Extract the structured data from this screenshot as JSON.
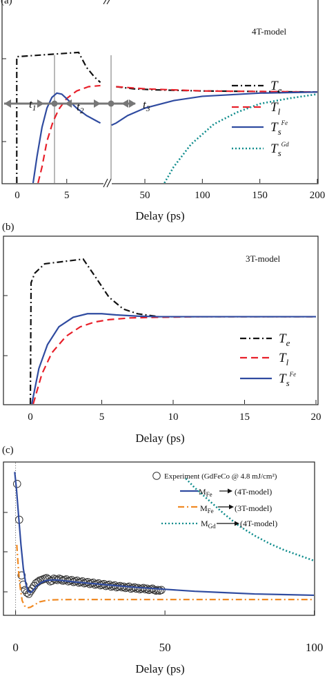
{
  "colors": {
    "Te": "#111111",
    "Tl": "#e8202a",
    "TsFe": "#2f4ba0",
    "TsGd": "#0e8c8c",
    "M_3T": "#f08a24",
    "marker": "#333333",
    "guide": "#888888"
  },
  "panels": {
    "a": {
      "label": "(a)",
      "model": "4T-model"
    },
    "b": {
      "label": "(b)",
      "model": "3T-model"
    },
    "c": {
      "label": "(c)"
    }
  },
  "intervals": {
    "t1": "t",
    "t1_sub": "1",
    "t2": "t",
    "t2_sub": "2",
    "t3": "t",
    "t3_sub": "3"
  },
  "chart_data": [
    {
      "type": "line",
      "panel": "a",
      "xlabel": "Delay (ps)",
      "x_axis": "broken",
      "x_segments": [
        {
          "xlim": [
            -1,
            8.5
          ],
          "ticks": [
            0,
            5
          ]
        },
        {
          "xlim": [
            20,
            200
          ],
          "ticks": [
            50,
            100,
            150,
            200
          ]
        }
      ],
      "tick_labels": [
        "0",
        "5",
        "50",
        "100",
        "150",
        "200"
      ],
      "annotation": "4T-model",
      "legend_placement": "right",
      "series": [
        {
          "name": "T",
          "sub": "e",
          "style": "dashdot",
          "x": [
            -0.05,
            -0.05,
            6.2,
            7.0,
            7.8,
            8.4,
            25,
            40,
            60,
            100,
            150,
            200
          ],
          "y": [
            0,
            1.18,
            1.22,
            1.08,
            0.99,
            0.94,
            0.9,
            0.88,
            0.87,
            0.86,
            0.855,
            0.85
          ]
        },
        {
          "name": "T",
          "sub": "l",
          "style": "dashed",
          "x": [
            2.1,
            2.5,
            3.0,
            3.6,
            4.2,
            5.0,
            6.0,
            7.2,
            8.4,
            25,
            50,
            100,
            150,
            200
          ],
          "y": [
            0,
            0.15,
            0.39,
            0.57,
            0.69,
            0.79,
            0.86,
            0.9,
            0.91,
            0.9,
            0.88,
            0.86,
            0.855,
            0.85
          ]
        },
        {
          "name": "T",
          "sub": "s",
          "sup": "Fe",
          "style": "solid",
          "x": [
            1.6,
            2.0,
            2.5,
            3.0,
            3.5,
            4.0,
            4.5,
            5.2,
            6.0,
            7.0,
            8.0,
            8.4,
            21,
            25,
            35,
            50,
            75,
            100,
            150,
            200
          ],
          "y": [
            0,
            0.25,
            0.52,
            0.7,
            0.8,
            0.84,
            0.83,
            0.77,
            0.7,
            0.63,
            0.58,
            0.56,
            0.54,
            0.56,
            0.63,
            0.7,
            0.77,
            0.81,
            0.84,
            0.85
          ]
        },
        {
          "name": "T",
          "sub": "s",
          "sup": "Gd",
          "style": "dotted",
          "x": [
            67,
            75,
            90,
            110,
            130,
            150,
            175,
            200
          ],
          "y": [
            0,
            0.15,
            0.36,
            0.55,
            0.66,
            0.74,
            0.79,
            0.83
          ]
        }
      ]
    },
    {
      "type": "line",
      "panel": "b",
      "xlabel": "Delay (ps)",
      "xlim": [
        -2,
        20
      ],
      "x_ticks": [
        0,
        5,
        10,
        15,
        20
      ],
      "annotation": "3T-model",
      "legend_placement": "right",
      "series": [
        {
          "name": "T",
          "sub": "e",
          "style": "dashdot",
          "x": [
            0.0,
            0.05,
            0.3,
            1.0,
            3.7,
            4.5,
            5.5,
            6.5,
            7.5,
            9,
            12,
            20
          ],
          "y": [
            0,
            1.02,
            1.1,
            1.18,
            1.22,
            1.08,
            0.9,
            0.8,
            0.76,
            0.735,
            0.735,
            0.735
          ]
        },
        {
          "name": "T",
          "sub": "l",
          "style": "dashed",
          "x": [
            0.2,
            0.8,
            1.5,
            2.5,
            3.5,
            4.5,
            5.5,
            7,
            9,
            12,
            20
          ],
          "y": [
            0,
            0.25,
            0.43,
            0.57,
            0.65,
            0.69,
            0.71,
            0.725,
            0.73,
            0.735,
            0.735
          ]
        },
        {
          "name": "T",
          "sub": "s",
          "sup": "Fe",
          "style": "solid",
          "x": [
            0.1,
            0.6,
            1.2,
            2.0,
            3.0,
            4.0,
            5.0,
            6.0,
            7.5,
            9,
            12,
            20
          ],
          "y": [
            0,
            0.3,
            0.5,
            0.65,
            0.73,
            0.76,
            0.76,
            0.75,
            0.74,
            0.735,
            0.735,
            0.735
          ]
        }
      ]
    },
    {
      "type": "line",
      "panel": "c",
      "xlabel": "Delay (ps)",
      "xlim": [
        -2,
        100
      ],
      "x_ticks": [
        0,
        50,
        100
      ],
      "legend_placement": "top-right",
      "series": [
        {
          "name": "Experiment (GdFeCo @ 4.8 mJ/cm²)",
          "style": "markers",
          "x": [
            0.5,
            1.2,
            2.0,
            2.6,
            3.2,
            3.8,
            4.4,
            5.0,
            5.6,
            6.2,
            6.8,
            7.4,
            8.0,
            8.6,
            9.2,
            9.8,
            10.4,
            11.0,
            11.6,
            12.2,
            12.8,
            13.4,
            14.0,
            14.6,
            15.2,
            15.8,
            16.4,
            17.0,
            17.6,
            18.2,
            18.8,
            19.4,
            20.0,
            20.6,
            21.2,
            21.8,
            22.4,
            23.0,
            23.6,
            24.2,
            24.8,
            25.4,
            26.0,
            26.6,
            27.2,
            27.8,
            28.4,
            29.0,
            29.6,
            30.2,
            30.8,
            31.4,
            32.0,
            32.6,
            33.2,
            33.8,
            34.4,
            35.0,
            35.6,
            36.2,
            36.8,
            37.4,
            38.0,
            38.6,
            39.2,
            39.8,
            40.4,
            41.0,
            41.6,
            42.2,
            42.8,
            43.4,
            44.0,
            44.6,
            45.2,
            45.8,
            46.4,
            47.0,
            47.6,
            48.2,
            48.8
          ],
          "y": [
            0.96,
            0.69,
            0.27,
            0.2,
            0.16,
            0.14,
            0.13,
            0.15,
            0.17,
            0.19,
            0.21,
            0.22,
            0.23,
            0.235,
            0.24,
            0.245,
            0.25,
            0.24,
            0.225,
            0.23,
            0.245,
            0.24,
            0.235,
            0.245,
            0.24,
            0.23,
            0.235,
            0.24,
            0.225,
            0.23,
            0.235,
            0.22,
            0.225,
            0.23,
            0.215,
            0.22,
            0.225,
            0.21,
            0.215,
            0.22,
            0.205,
            0.21,
            0.215,
            0.2,
            0.205,
            0.21,
            0.195,
            0.2,
            0.205,
            0.19,
            0.195,
            0.2,
            0.185,
            0.19,
            0.195,
            0.18,
            0.185,
            0.19,
            0.18,
            0.185,
            0.175,
            0.18,
            0.185,
            0.17,
            0.175,
            0.18,
            0.17,
            0.175,
            0.165,
            0.17,
            0.175,
            0.165,
            0.17,
            0.16,
            0.165,
            0.17,
            0.16,
            0.155,
            0.16,
            0.155,
            0.16
          ]
        },
        {
          "name": "M",
          "sub": "Fe",
          "suffix": "(4T-model)",
          "style": "solid",
          "x": [
            -0.3,
            0.3,
            1.0,
            1.8,
            2.6,
            3.4,
            4.2,
            5.0,
            6.0,
            7.0,
            8.5,
            10,
            12,
            14,
            16,
            20,
            25,
            30,
            40,
            50,
            60,
            70,
            80,
            90,
            100
          ],
          "y": [
            1.05,
            0.92,
            0.72,
            0.5,
            0.32,
            0.21,
            0.15,
            0.14,
            0.16,
            0.19,
            0.215,
            0.23,
            0.235,
            0.235,
            0.23,
            0.22,
            0.21,
            0.2,
            0.18,
            0.165,
            0.15,
            0.14,
            0.13,
            0.125,
            0.12
          ]
        },
        {
          "name": "M",
          "sub": "Fe",
          "suffix": "(3T-model)",
          "style": "dashdot",
          "x": [
            0.4,
            1.0,
            1.6,
            2.2,
            3.0,
            4.0,
            5.0,
            6.5,
            8.0,
            10,
            12,
            15,
            20,
            30,
            50,
            75,
            100
          ],
          "y": [
            0.5,
            0.3,
            0.17,
            0.08,
            0.04,
            0.025,
            0.03,
            0.05,
            0.07,
            0.08,
            0.085,
            0.087,
            0.088,
            0.088,
            0.088,
            0.088,
            0.088
          ]
        },
        {
          "name": "M",
          "sub": "Gd",
          "suffix": "(4T-model)",
          "style": "dotted",
          "x": [
            57,
            60,
            65,
            70,
            75,
            80,
            85,
            90,
            95,
            100
          ],
          "y": [
            1.0,
            0.93,
            0.83,
            0.73,
            0.64,
            0.57,
            0.51,
            0.46,
            0.42,
            0.38
          ]
        }
      ]
    }
  ]
}
